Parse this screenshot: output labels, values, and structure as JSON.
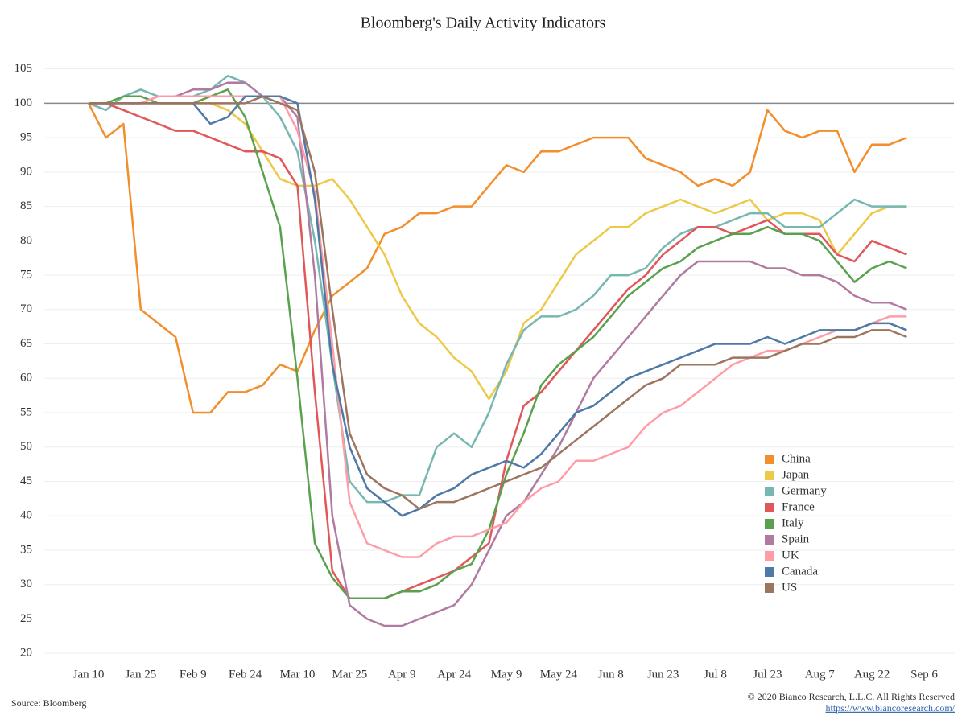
{
  "chart_data": {
    "type": "line",
    "title": "Bloomberg's Daily Activity Indicators",
    "source": "Source: Bloomberg",
    "copyright": "© 2020 Bianco Research, L.L.C. All Rights Reserved",
    "url": "https://www.biancoresearch.com/",
    "categories": [
      "Jan 10",
      null,
      null,
      "Jan 25",
      null,
      null,
      "Feb 9",
      null,
      null,
      "Feb 24",
      null,
      null,
      "Mar 10",
      null,
      null,
      "Mar 25",
      null,
      null,
      "Apr 9",
      null,
      null,
      "Apr 24",
      null,
      null,
      "May 9",
      null,
      null,
      "May 24",
      null,
      null,
      "Jun 8",
      null,
      null,
      "Jun 23",
      null,
      null,
      "Jul 8",
      null,
      null,
      "Jul 23",
      null,
      null,
      "Aug 7",
      null,
      null,
      "Aug 22",
      null,
      null,
      "Sep 6"
    ],
    "ylim": [
      18.5,
      108
    ],
    "yticks": [
      20,
      25,
      30,
      35,
      40,
      45,
      50,
      55,
      60,
      65,
      70,
      75,
      80,
      85,
      90,
      95,
      100,
      105
    ],
    "baseline": 100,
    "grid": true,
    "legend": "lower right",
    "series": [
      {
        "name": "China",
        "color": "#f28e2b",
        "values": [
          100,
          95,
          97,
          70,
          68,
          66,
          55,
          55,
          58,
          58,
          59,
          62,
          61,
          67,
          72,
          74,
          76,
          81,
          82,
          84,
          84,
          85,
          85,
          88,
          91,
          90,
          93,
          93,
          94,
          95,
          95,
          95,
          92,
          91,
          90,
          88,
          89,
          88,
          90,
          99,
          96,
          95,
          96,
          96,
          90,
          94,
          94,
          95,
          null
        ]
      },
      {
        "name": "Japan",
        "color": "#edc948",
        "values": [
          100,
          100,
          100,
          100,
          100,
          100,
          100,
          100,
          99,
          97,
          93,
          89,
          88,
          88,
          89,
          86,
          82,
          78,
          72,
          68,
          66,
          63,
          61,
          57,
          61,
          68,
          70,
          74,
          78,
          80,
          82,
          82,
          84,
          85,
          86,
          85,
          84,
          85,
          86,
          83,
          84,
          84,
          83,
          78,
          81,
          84,
          85,
          85,
          null
        ]
      },
      {
        "name": "Germany",
        "color": "#76b7b2",
        "values": [
          100,
          99,
          101,
          102,
          101,
          101,
          101,
          102,
          104,
          103,
          101,
          98,
          93,
          80,
          62,
          45,
          42,
          42,
          43,
          43,
          50,
          52,
          50,
          55,
          62,
          67,
          69,
          69,
          70,
          72,
          75,
          75,
          76,
          79,
          81,
          82,
          82,
          83,
          84,
          84,
          82,
          82,
          82,
          84,
          86,
          85,
          85,
          85,
          null
        ]
      },
      {
        "name": "France",
        "color": "#e15759",
        "values": [
          100,
          100,
          99,
          98,
          97,
          96,
          96,
          95,
          94,
          93,
          93,
          92,
          88,
          58,
          32,
          28,
          28,
          28,
          29,
          30,
          31,
          32,
          34,
          36,
          48,
          56,
          58,
          61,
          64,
          67,
          70,
          73,
          75,
          78,
          80,
          82,
          82,
          81,
          82,
          83,
          81,
          81,
          81,
          78,
          77,
          80,
          79,
          78,
          null
        ]
      },
      {
        "name": "Italy",
        "color": "#59a14f",
        "values": [
          100,
          100,
          101,
          101,
          100,
          100,
          100,
          101,
          102,
          98,
          90,
          82,
          60,
          36,
          31,
          28,
          28,
          28,
          29,
          29,
          30,
          32,
          33,
          38,
          46,
          52,
          59,
          62,
          64,
          66,
          69,
          72,
          74,
          76,
          77,
          79,
          80,
          81,
          81,
          82,
          81,
          81,
          80,
          77,
          74,
          76,
          77,
          76,
          null
        ]
      },
      {
        "name": "Spain",
        "color": "#b07aa1",
        "values": [
          100,
          100,
          100,
          100,
          101,
          101,
          102,
          102,
          103,
          103,
          101,
          101,
          98,
          75,
          40,
          27,
          25,
          24,
          24,
          25,
          26,
          27,
          30,
          35,
          40,
          42,
          46,
          50,
          55,
          60,
          63,
          66,
          69,
          72,
          75,
          77,
          77,
          77,
          77,
          76,
          76,
          75,
          75,
          74,
          72,
          71,
          71,
          70,
          null
        ]
      },
      {
        "name": "UK",
        "color": "#ff9da7",
        "values": [
          100,
          100,
          100,
          100,
          101,
          101,
          101,
          101,
          101,
          101,
          101,
          101,
          96,
          87,
          65,
          42,
          36,
          35,
          34,
          34,
          36,
          37,
          37,
          38,
          39,
          42,
          44,
          45,
          48,
          48,
          49,
          50,
          53,
          55,
          56,
          58,
          60,
          62,
          63,
          64,
          64,
          65,
          66,
          67,
          67,
          68,
          69,
          69,
          null
        ]
      },
      {
        "name": "Canada",
        "color": "#4e79a7",
        "values": [
          100,
          100,
          100,
          100,
          100,
          100,
          100,
          97,
          98,
          101,
          101,
          101,
          100,
          86,
          62,
          50,
          44,
          42,
          40,
          41,
          43,
          44,
          46,
          47,
          48,
          47,
          49,
          52,
          55,
          56,
          58,
          60,
          61,
          62,
          63,
          64,
          65,
          65,
          65,
          66,
          65,
          66,
          67,
          67,
          67,
          68,
          68,
          67,
          null
        ]
      },
      {
        "name": "US",
        "color": "#9c755f",
        "values": [
          100,
          100,
          100,
          100,
          100,
          100,
          100,
          100,
          100,
          100,
          101,
          100,
          99,
          90,
          70,
          52,
          46,
          44,
          43,
          41,
          42,
          42,
          43,
          44,
          45,
          46,
          47,
          49,
          51,
          53,
          55,
          57,
          59,
          60,
          62,
          62,
          62,
          63,
          63,
          63,
          64,
          65,
          65,
          66,
          66,
          67,
          67,
          66,
          null
        ]
      }
    ]
  }
}
